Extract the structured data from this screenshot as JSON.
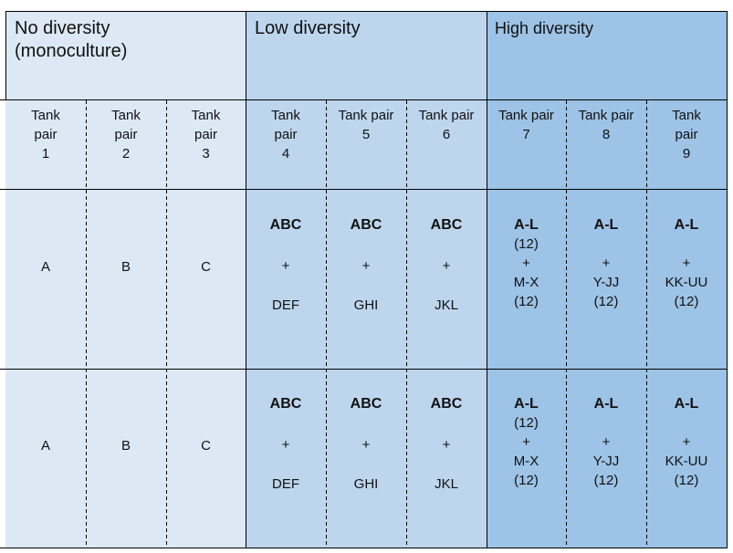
{
  "groups": [
    {
      "title_line1": "No diversity",
      "title_line2": "(monoculture)",
      "color": "#dce9f5"
    },
    {
      "title_line1": "Low diversity",
      "title_line2": "",
      "color": "#bdd6ee"
    },
    {
      "title_line1": "High diversity",
      "title_line2": "",
      "color": "#9dc3e6"
    }
  ],
  "pairs": [
    {
      "l1": "Tank",
      "l2": "pair",
      "l3": "1"
    },
    {
      "l1": "Tank",
      "l2": "pair",
      "l3": "2"
    },
    {
      "l1": "Tank",
      "l2": "pair",
      "l3": "3"
    },
    {
      "l1": "Tank",
      "l2": "pair",
      "l3": "4"
    },
    {
      "l1": "Tank pair",
      "l2": "5",
      "l3": ""
    },
    {
      "l1": "Tank pair",
      "l2": "6",
      "l3": ""
    },
    {
      "l1": "Tank pair",
      "l2": "7",
      "l3": ""
    },
    {
      "l1": "Tank pair",
      "l2": "8",
      "l3": ""
    },
    {
      "l1": "Tank",
      "l2": "pair",
      "l3": "9"
    }
  ],
  "rows": [
    [
      {
        "lines": [
          "A"
        ]
      },
      {
        "lines": [
          "B"
        ]
      },
      {
        "lines": [
          "C"
        ]
      },
      {
        "bold": "ABC",
        "lines": [
          "+",
          "DEF"
        ]
      },
      {
        "bold": "ABC",
        "lines": [
          "+",
          "GHI"
        ]
      },
      {
        "bold": "ABC",
        "lines": [
          "+",
          "JKL"
        ]
      },
      {
        "bold": "A-L",
        "lines": [
          "(12)",
          "+",
          "M-X",
          "(12)"
        ]
      },
      {
        "bold": "A-L",
        "lines": [
          "",
          "+",
          "Y-JJ",
          "(12)"
        ]
      },
      {
        "bold": "A-L",
        "lines": [
          "",
          "+",
          "KK-UU",
          "(12)"
        ]
      }
    ],
    [
      {
        "lines": [
          "A"
        ]
      },
      {
        "lines": [
          "B"
        ]
      },
      {
        "lines": [
          "C"
        ]
      },
      {
        "bold": "ABC",
        "lines": [
          "+",
          "DEF"
        ]
      },
      {
        "bold": "ABC",
        "lines": [
          "+",
          "GHI"
        ]
      },
      {
        "bold": "ABC",
        "lines": [
          "+",
          "JKL"
        ]
      },
      {
        "bold": "A-L",
        "lines": [
          "(12)",
          "+",
          "M-X",
          "(12)"
        ]
      },
      {
        "bold": "A-L",
        "lines": [
          "",
          "+",
          "Y-JJ",
          "(12)"
        ]
      },
      {
        "bold": "A-L",
        "lines": [
          "",
          "+",
          "KK-UU",
          "(12)"
        ]
      }
    ]
  ]
}
